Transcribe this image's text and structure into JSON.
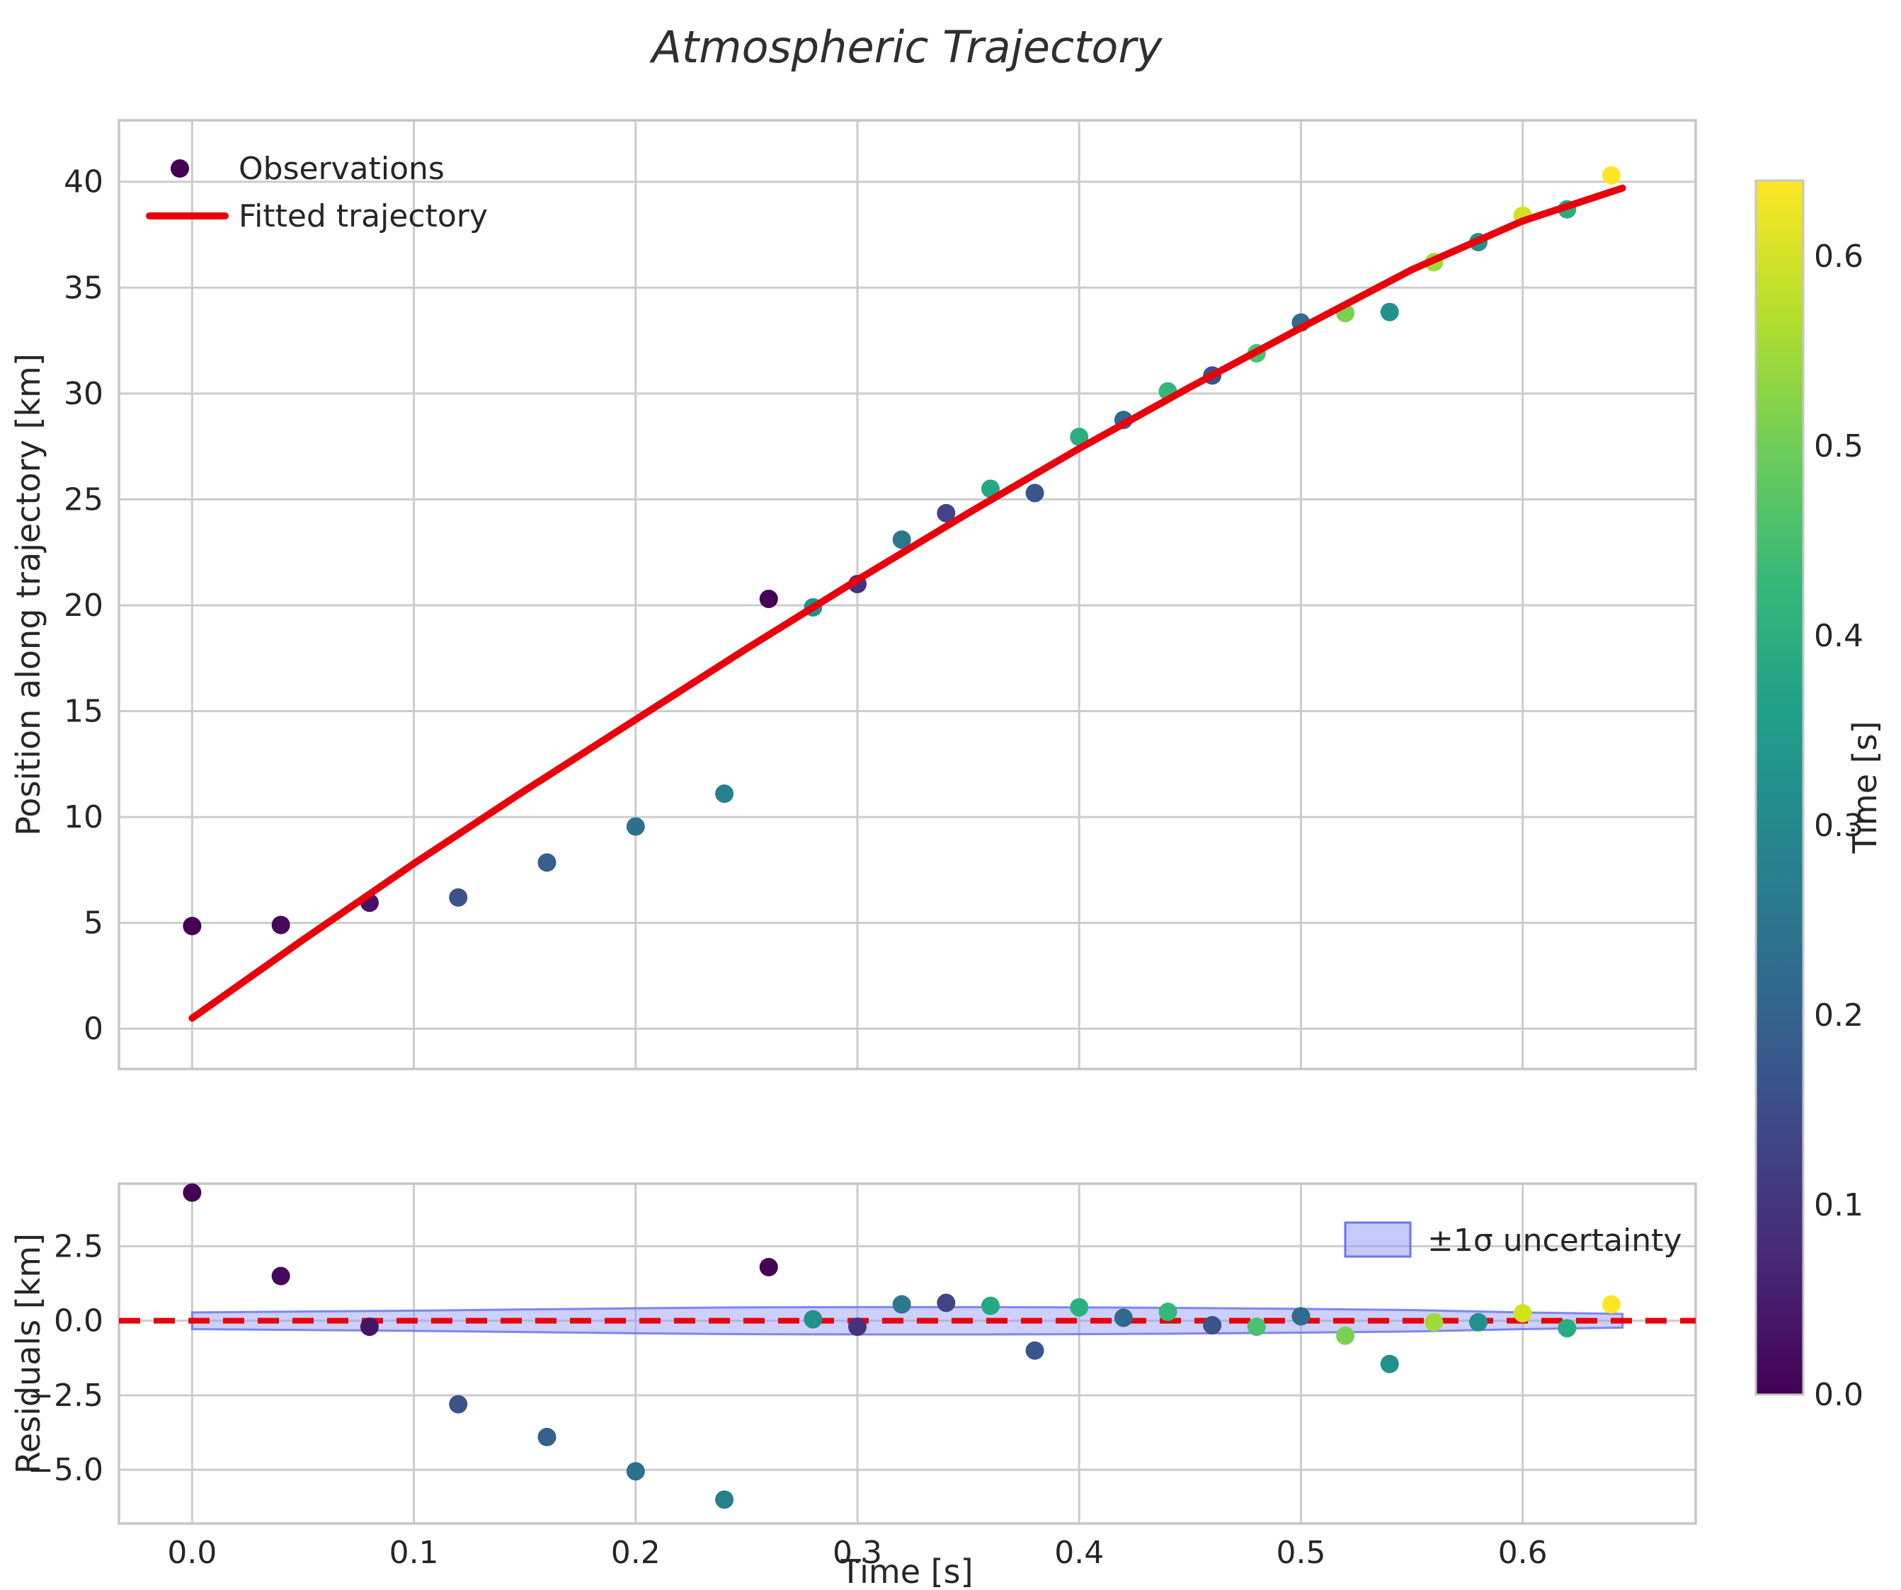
{
  "title": "Atmospheric Trajectory",
  "colors": {
    "fit_line": "#e8000b",
    "zero_line": "#e8000b",
    "grid": "#cccccc",
    "axes_border": "#c6c6c6",
    "band_fill": "#8d96f5",
    "band_edge": "#6b74ee",
    "text": "#262626",
    "background": "#ffffff",
    "legend_marker": "#440154"
  },
  "chart_data": [
    {
      "type": "scatter",
      "name": "main",
      "ylabel": "Position along trajectory [km]",
      "xlim": [
        -0.033,
        0.678
      ],
      "ylim": [
        -1.9,
        42.9
      ],
      "grid": true,
      "legend_position": "upper left",
      "legend": {
        "observations": "Observations",
        "fit": "Fitted trajectory"
      },
      "yticks": {
        "values": [
          0,
          5,
          10,
          15,
          20,
          25,
          30,
          35,
          40
        ],
        "labels": [
          "0",
          "5",
          "10",
          "15",
          "20",
          "25",
          "30",
          "35",
          "40"
        ]
      },
      "series": [
        {
          "name": "Observations",
          "x": [
            0.0,
            0.04,
            0.08,
            0.12,
            0.16,
            0.2,
            0.24,
            0.26,
            0.28,
            0.3,
            0.32,
            0.34,
            0.36,
            0.38,
            0.4,
            0.42,
            0.44,
            0.46,
            0.48,
            0.5,
            0.52,
            0.54,
            0.56,
            0.58,
            0.6,
            0.62,
            0.64
          ],
          "y": [
            4.85,
            4.9,
            5.95,
            6.2,
            7.85,
            9.55,
            11.1,
            20.3,
            19.9,
            21.0,
            23.1,
            24.35,
            25.5,
            25.3,
            27.95,
            28.75,
            30.1,
            30.85,
            31.9,
            33.35,
            33.8,
            33.85,
            36.2,
            37.15,
            38.4,
            38.7,
            40.3
          ],
          "point_colors": [
            "#440154",
            "#46085c",
            "#471365",
            "#3b528b",
            "#355f8d",
            "#2d708e",
            "#27808e",
            "#440154",
            "#21918c",
            "#46327e",
            "#2a788e",
            "#414487",
            "#23a983",
            "#39568c",
            "#2ab07f",
            "#31688e",
            "#35b779",
            "#3b528b",
            "#4ac16d",
            "#2e6d8e",
            "#7ad151",
            "#21918c",
            "#a0da39",
            "#21918c",
            "#d2e21b",
            "#27ad81",
            "#fde725"
          ]
        },
        {
          "name": "Fitted trajectory",
          "curve": [
            [
              0,
              0.5
            ],
            [
              0.05,
              4.2
            ],
            [
              0.1,
              7.8
            ],
            [
              0.15,
              11.25
            ],
            [
              0.2,
              14.6
            ],
            [
              0.25,
              17.95
            ],
            [
              0.3,
              21.2
            ],
            [
              0.35,
              24.35
            ],
            [
              0.4,
              27.4
            ],
            [
              0.45,
              30.3
            ],
            [
              0.5,
              33.1
            ],
            [
              0.55,
              35.85
            ],
            [
              0.6,
              38.15
            ],
            [
              0.645,
              39.7
            ]
          ]
        }
      ]
    },
    {
      "type": "scatter",
      "name": "residuals",
      "ylabel": "Residuals [km]",
      "xlabel": "Time [s]",
      "xlim": [
        -0.033,
        0.678
      ],
      "ylim": [
        -6.8,
        4.6
      ],
      "grid": true,
      "xticks": {
        "values": [
          0.0,
          0.1,
          0.2,
          0.3,
          0.4,
          0.5,
          0.6
        ],
        "labels": [
          "0.0",
          "0.1",
          "0.2",
          "0.3",
          "0.4",
          "0.5",
          "0.6"
        ]
      },
      "yticks": {
        "values": [
          2.5,
          0.0,
          -2.5,
          -5.0
        ],
        "labels": [
          "2.5",
          "0.0",
          "−2.5",
          "−5.0"
        ]
      },
      "zero_line": {
        "style": "dashed",
        "value": 0.0
      },
      "series": [
        {
          "name": "Residuals",
          "x": [
            0.0,
            0.04,
            0.08,
            0.12,
            0.16,
            0.2,
            0.24,
            0.26,
            0.28,
            0.3,
            0.32,
            0.34,
            0.36,
            0.38,
            0.4,
            0.42,
            0.44,
            0.46,
            0.48,
            0.5,
            0.52,
            0.54,
            0.56,
            0.58,
            0.6,
            0.62,
            0.64
          ],
          "y": [
            4.3,
            1.5,
            -0.2,
            -2.8,
            -3.9,
            -5.05,
            -6.0,
            1.8,
            0.05,
            -0.2,
            0.55,
            0.6,
            0.5,
            -1.0,
            0.45,
            0.1,
            0.3,
            -0.15,
            -0.2,
            0.15,
            -0.5,
            -1.45,
            -0.05,
            -0.05,
            0.25,
            -0.25,
            0.55
          ]
        }
      ],
      "uncertainty_band": {
        "label": "±1σ uncertainty",
        "x": [
          0.0,
          0.05,
          0.1,
          0.15,
          0.2,
          0.25,
          0.3,
          0.35,
          0.4,
          0.45,
          0.5,
          0.55,
          0.6,
          0.645
        ],
        "sigma": [
          0.28,
          0.31,
          0.34,
          0.38,
          0.42,
          0.45,
          0.46,
          0.46,
          0.45,
          0.43,
          0.4,
          0.36,
          0.28,
          0.23
        ]
      }
    }
  ],
  "colorbar": {
    "label": "Time [s]",
    "vmin": 0.0,
    "vmax": 0.64,
    "tick_values": [
      0.0,
      0.1,
      0.2,
      0.3,
      0.4,
      0.5,
      0.6
    ],
    "tick_labels": [
      "0.0",
      "0.1",
      "0.2",
      "0.3",
      "0.4",
      "0.5",
      "0.6"
    ],
    "gradient_stops": [
      "#440154",
      "#482878",
      "#3e4989",
      "#31688e",
      "#26828e",
      "#1f9e89",
      "#35b779",
      "#6dcd59",
      "#b4de2c",
      "#fde725"
    ]
  }
}
